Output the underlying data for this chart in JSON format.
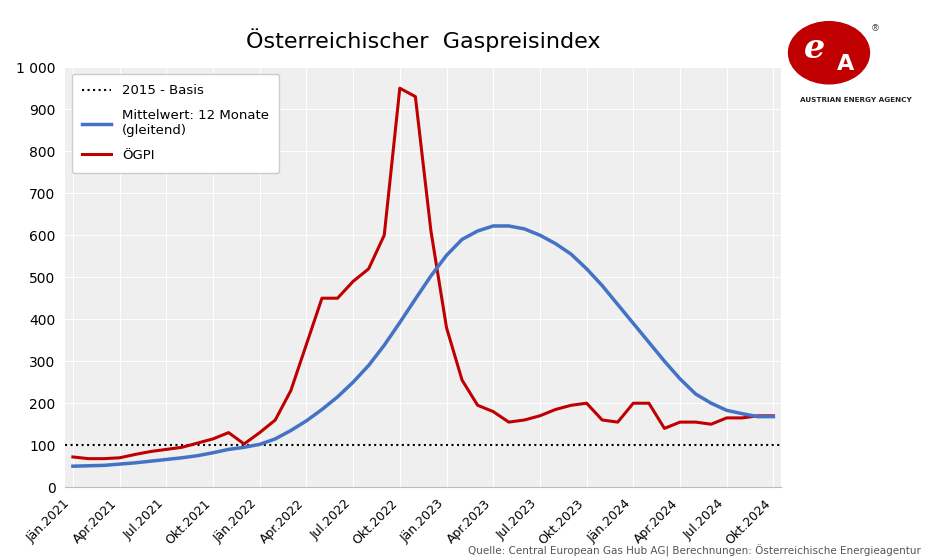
{
  "title": "Österreichischer  Gaspreisindex",
  "title_fontsize": 16,
  "background_color": "#ffffff",
  "plot_background_color": "#efefef",
  "grid_color": "#ffffff",
  "source_text": "Quelle: Central European Gas Hub AG| Berechnungen: Österreichische Energieagentur",
  "basis_line": 100,
  "basis_label": "2015 - Basis",
  "ylim": [
    0,
    1000
  ],
  "ytick_values": [
    0,
    100,
    200,
    300,
    400,
    500,
    600,
    700,
    800,
    900,
    1000
  ],
  "legend_blue_label": "Mittelwert: 12 Monate\n(gleitend)",
  "legend_red_label": "ÖGPI",
  "line_blue_color": "#4472C4",
  "line_red_color": "#C00000",
  "basis_line_color": "#000000",
  "xtick_labels": [
    "Jän.2021",
    "Apr.2021",
    "Jul.2021",
    "Okt.2021",
    "Jän.2022",
    "Apr.2022",
    "Jul.2022",
    "Okt.2022",
    "Jän.2023",
    "Apr.2023",
    "Jul.2023",
    "Okt.2023",
    "Jän.2024",
    "Apr.2024",
    "Jul.2024",
    "Okt.2024"
  ],
  "ogpi": [
    72,
    68,
    68,
    70,
    78,
    85,
    90,
    95,
    105,
    115,
    130,
    103,
    130,
    160,
    230,
    340,
    450,
    450,
    490,
    520,
    600,
    950,
    930,
    610,
    380,
    255,
    195,
    180,
    155,
    160,
    170,
    185,
    195,
    200,
    160,
    155,
    200,
    200,
    140,
    155,
    155,
    150,
    165,
    165,
    170,
    170
  ],
  "rolling12": [
    50,
    51,
    52,
    55,
    58,
    62,
    66,
    70,
    75,
    82,
    90,
    95,
    102,
    115,
    135,
    158,
    185,
    215,
    250,
    290,
    338,
    392,
    448,
    503,
    552,
    590,
    610,
    622,
    622,
    615,
    600,
    580,
    555,
    520,
    480,
    435,
    390,
    345,
    300,
    258,
    222,
    200,
    183,
    175,
    168,
    168
  ],
  "n_points": 46
}
